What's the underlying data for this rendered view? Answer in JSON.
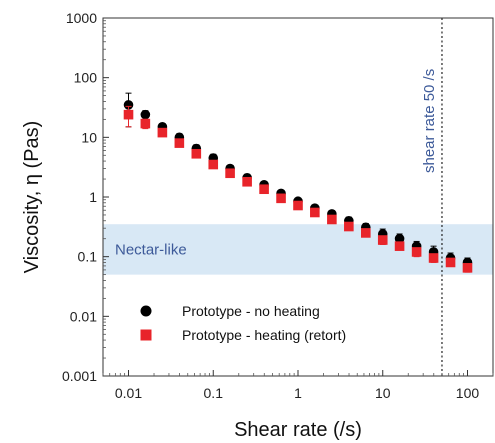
{
  "chart_data": {
    "type": "scatter",
    "xlabel": "Shear rate (/s)",
    "ylabel": "Viscosity, η (Pas)",
    "x_scale": "log",
    "y_scale": "log",
    "xlim": [
      0.005,
      200
    ],
    "ylim": [
      0.001,
      1000
    ],
    "x_ticks": [
      0.01,
      0.1,
      1,
      10,
      100
    ],
    "x_tick_labels": [
      "0.01",
      "0.1",
      "1",
      "10",
      "100"
    ],
    "y_ticks": [
      0.001,
      0.01,
      0.1,
      1,
      10,
      100,
      1000
    ],
    "y_tick_labels": [
      "0.001",
      "0.01",
      "0.1",
      "1",
      "10",
      "100",
      "1000"
    ],
    "band": {
      "label": "Nectar-like",
      "y_range": [
        0.05,
        0.35
      ],
      "color": "#d8e8f5",
      "label_color": "#3d5a99"
    },
    "reference_line": {
      "x": 50,
      "label": "shear rate  50 /s",
      "style": "dotted",
      "label_color": "#3d5a99"
    },
    "legend_position": "bottom-left",
    "series": [
      {
        "name": "Prototype - no heating",
        "marker": "circle",
        "color": "#000000",
        "x": [
          0.01,
          0.0158,
          0.0251,
          0.0398,
          0.0631,
          0.1,
          0.158,
          0.251,
          0.398,
          0.631,
          1,
          1.58,
          2.51,
          3.98,
          6.31,
          10,
          15.8,
          25.1,
          39.8,
          63.1,
          100
        ],
        "y": [
          35,
          24,
          15,
          10,
          6.5,
          4.5,
          3.0,
          2.1,
          1.6,
          1.15,
          0.85,
          0.65,
          0.52,
          0.4,
          0.31,
          0.24,
          0.2,
          0.15,
          0.12,
          0.095,
          0.08
        ],
        "err": [
          20,
          4,
          2,
          1.5,
          1,
          0.7,
          0.4,
          0.3,
          0.2,
          0.15,
          0.1,
          0.08,
          0.07,
          0.06,
          0.05,
          0.05,
          0.04,
          0.03,
          0.03,
          0.02,
          0.015
        ]
      },
      {
        "name": "Prototype - heating (retort)",
        "marker": "square",
        "color": "#e8242a",
        "x": [
          0.01,
          0.0158,
          0.0251,
          0.0398,
          0.0631,
          0.1,
          0.158,
          0.251,
          0.398,
          0.631,
          1,
          1.58,
          2.51,
          3.98,
          6.31,
          10,
          15.8,
          25.1,
          39.8,
          63.1,
          100
        ],
        "y": [
          24,
          17,
          12,
          8,
          5.3,
          3.5,
          2.5,
          1.8,
          1.35,
          0.95,
          0.72,
          0.55,
          0.42,
          0.32,
          0.25,
          0.19,
          0.15,
          0.12,
          0.095,
          0.08,
          0.065
        ],
        "err": [
          9,
          3,
          1.5,
          1,
          0.7,
          0.4,
          0.3,
          0.2,
          0.15,
          0.1,
          0.08,
          0.06,
          0.05,
          0.04,
          0.03,
          0.03,
          0.02,
          0.02,
          0.015,
          0.01,
          0.01
        ]
      }
    ]
  }
}
